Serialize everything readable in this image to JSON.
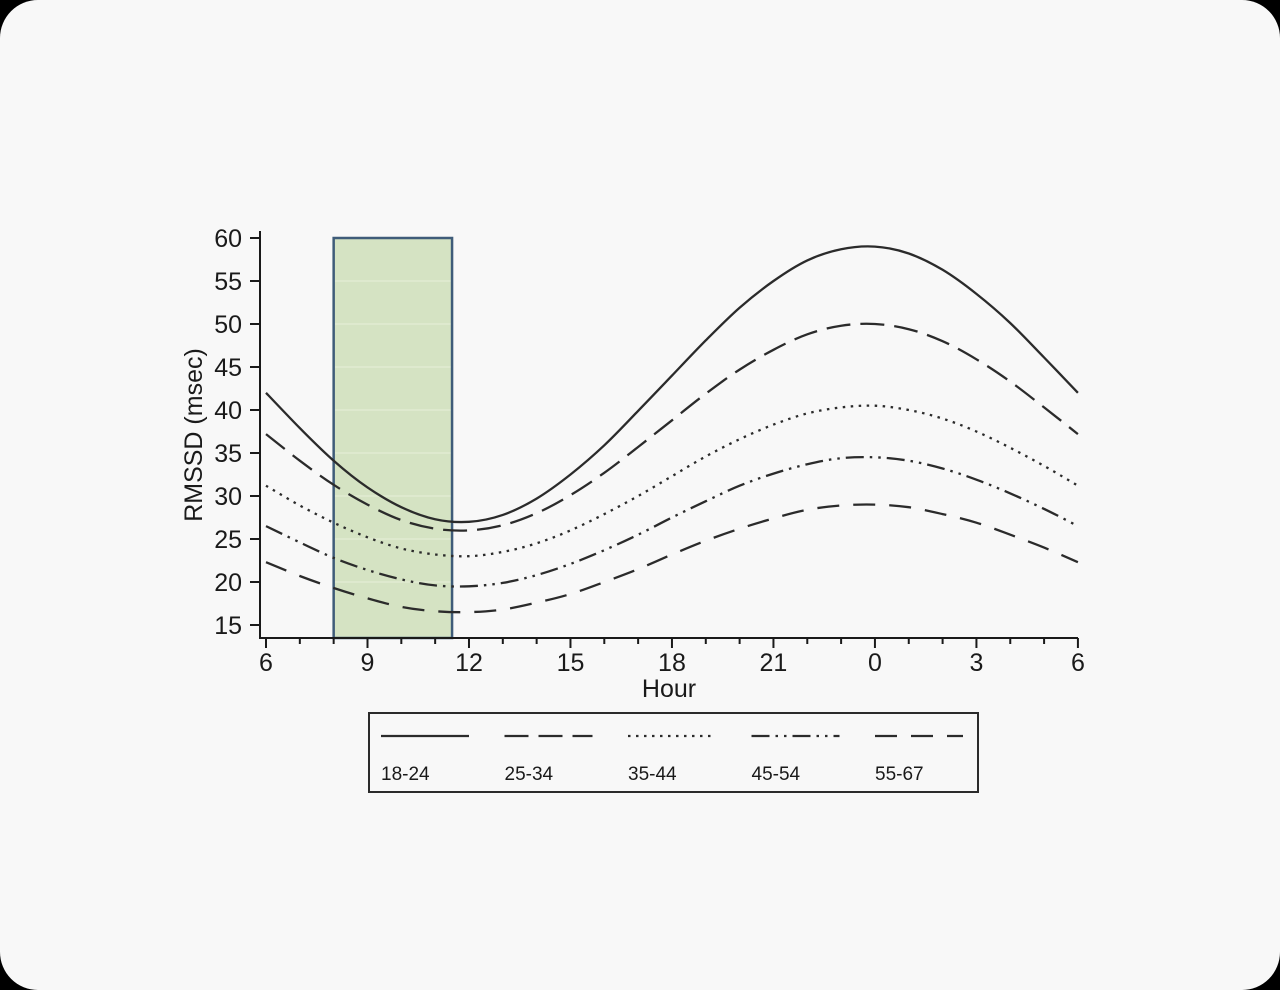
{
  "page": {
    "background_color": "#000000",
    "surface_color": "#f8f8f8"
  },
  "chart_data": {
    "type": "line",
    "title": "",
    "xlabel": "Hour",
    "ylabel": "RMSSD (msec)",
    "line_color": "#2b2b2b",
    "axis_color": "#1a1a1a",
    "grid": false,
    "legend_position": "bottom",
    "ylim": [
      15,
      60
    ],
    "y_ticks": [
      15,
      20,
      25,
      30,
      35,
      40,
      45,
      50,
      55,
      60
    ],
    "x_tick_labels": [
      "6",
      "9",
      "12",
      "15",
      "18",
      "21",
      "0",
      "3",
      "6"
    ],
    "x_tick_hours": [
      6,
      9,
      12,
      15,
      18,
      21,
      24,
      27,
      30
    ],
    "x_minor_tick_hours": [
      7,
      8,
      10,
      11,
      13,
      14,
      16,
      17,
      19,
      20,
      22,
      23,
      25,
      26,
      28,
      29
    ],
    "x_hours": [
      6,
      7,
      8,
      9,
      10,
      11,
      12,
      13,
      14,
      15,
      16,
      17,
      18,
      19,
      20,
      21,
      22,
      23,
      24,
      25,
      26,
      27,
      28,
      29,
      30
    ],
    "series": [
      {
        "name": "18-24",
        "line_style": "solid",
        "values": [
          42,
          37.9,
          34.1,
          31,
          28.7,
          27.3,
          27,
          27.8,
          29.7,
          32.5,
          35.9,
          39.9,
          44,
          48.1,
          51.9,
          55,
          57.4,
          58.7,
          59,
          58.2,
          56.3,
          53.5,
          50.1,
          46.1,
          42
        ]
      },
      {
        "name": "25-34",
        "line_style": "dashed",
        "values": [
          37.2,
          34.1,
          31.3,
          29,
          27.2,
          26.2,
          26,
          26.6,
          28,
          30.1,
          32.7,
          35.7,
          38.8,
          41.9,
          44.7,
          47,
          48.8,
          49.8,
          50,
          49.4,
          48,
          45.9,
          43.3,
          40.3,
          37.2
        ]
      },
      {
        "name": "35-44",
        "line_style": "dotted",
        "values": [
          31.2,
          28.9,
          26.9,
          25.2,
          23.9,
          23.2,
          23,
          23.5,
          24.5,
          26,
          27.9,
          30,
          32.3,
          34.6,
          36.6,
          38.3,
          39.6,
          40.3,
          40.5,
          40,
          39,
          37.5,
          35.6,
          33.5,
          31.2
        ]
      },
      {
        "name": "45-54",
        "line_style": "dash-dot-dot",
        "values": [
          26.5,
          24.6,
          22.8,
          21.4,
          20.3,
          19.6,
          19.5,
          19.9,
          20.8,
          22.1,
          23.7,
          25.5,
          27.5,
          29.4,
          31.2,
          32.6,
          33.7,
          34.4,
          34.5,
          34.1,
          33.2,
          31.9,
          30.3,
          28.5,
          26.5
        ]
      },
      {
        "name": "55-67",
        "line_style": "long-dash",
        "values": [
          22.3,
          20.7,
          19.3,
          18.1,
          17.1,
          16.6,
          16.5,
          16.8,
          17.6,
          18.6,
          20,
          21.5,
          23.2,
          24.8,
          26.2,
          27.4,
          28.4,
          28.9,
          29,
          28.7,
          27.9,
          26.9,
          25.5,
          24,
          22.3
        ]
      }
    ],
    "shaded_region": {
      "start_hour": 8,
      "end_hour": 11.5,
      "y_from": 15,
      "y_to": 60,
      "fill_color": "#d5e3c3",
      "border_color": "#3f5c79",
      "inner_gridline_color": "#e1ebd1",
      "inner_gridline_values": [
        20,
        25,
        30,
        35,
        40,
        45,
        50,
        55
      ]
    }
  }
}
